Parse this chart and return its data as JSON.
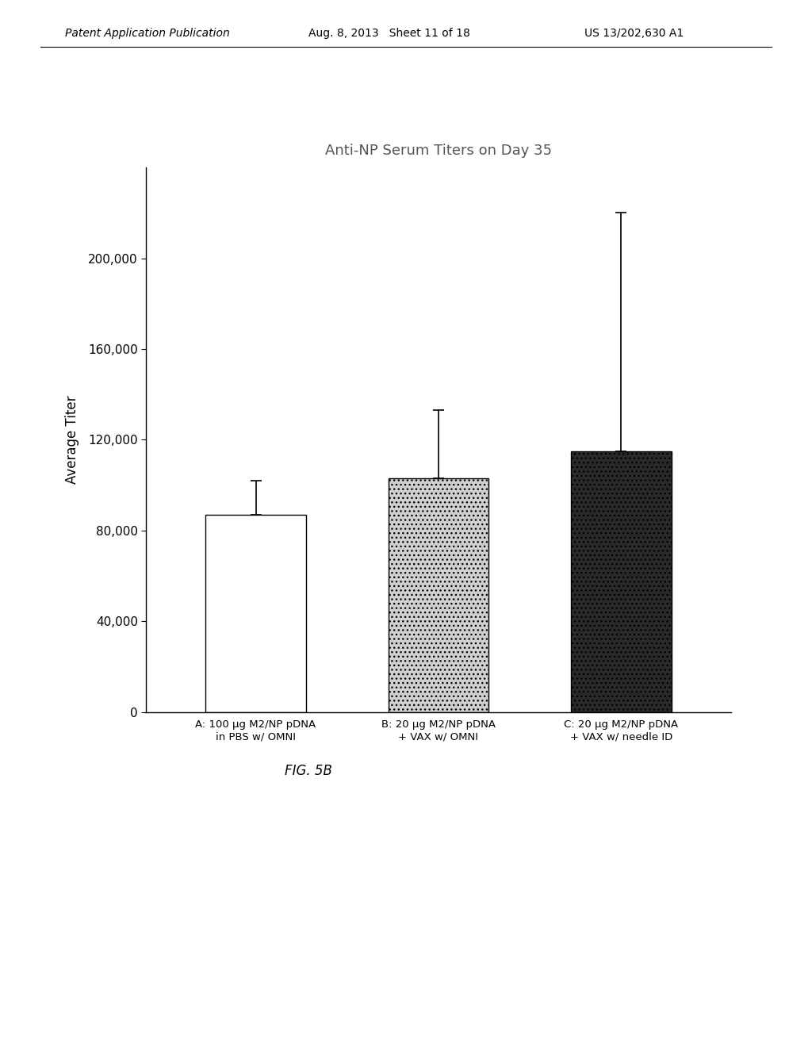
{
  "title": "Anti-NP Serum Titers on Day 35",
  "ylabel": "Average Titer",
  "bar_values": [
    87000,
    103000,
    115000
  ],
  "bar_errors": [
    15000,
    30000,
    105000
  ],
  "bar_colors": [
    "#ffffff",
    "#d0d0d0",
    "#2a2a2a"
  ],
  "bar_edge_colors": [
    "#000000",
    "#000000",
    "#000000"
  ],
  "bar_hatches": [
    null,
    null,
    null
  ],
  "categories": [
    "A: 100 μg M2/NP pDNA\nin PBS w/ OMNI",
    "B: 20 μg M2/NP pDNA\n+ VAX w/ OMNI",
    "C: 20 μg M2/NP pDNA\n+ VAX w/ needle ID"
  ],
  "ylim": [
    0,
    240000
  ],
  "yticks": [
    0,
    40000,
    80000,
    120000,
    160000,
    200000
  ],
  "ytick_labels": [
    "0",
    "40,000",
    "80,000",
    "120,000",
    "160,000",
    "200,000"
  ],
  "fig_caption": "FIG. 5B",
  "header_left": "Patent Application Publication",
  "header_center": "Aug. 8, 2013   Sheet 11 of 18",
  "header_right": "US 13/202,630 A1",
  "background_color": "#ffffff",
  "bar_width": 0.55
}
